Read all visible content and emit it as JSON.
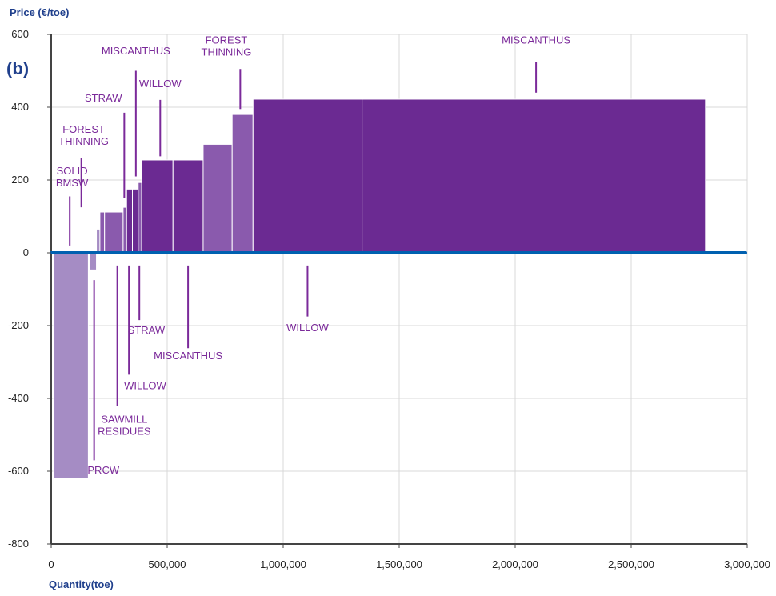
{
  "chart_data": {
    "type": "bar",
    "panel_label": "(b)",
    "ylabel": "Price (€/toe)",
    "xlabel": "Quantity(toe)",
    "xlim": [
      0,
      3000000
    ],
    "ylim": [
      -800,
      600
    ],
    "grid": true,
    "x_ticks": [
      0,
      500000,
      1000000,
      1500000,
      2000000,
      2500000,
      3000000
    ],
    "x_tick_labels": [
      "0",
      "500,000",
      "1,000,000",
      "1,500,000",
      "2,000,000",
      "2,500,000",
      "3,000,000"
    ],
    "y_ticks": [
      -800,
      -600,
      -400,
      -200,
      0,
      200,
      400,
      600
    ],
    "y_tick_labels": [
      "-800",
      "-600",
      "-400",
      "-200",
      "0",
      "200",
      "400",
      "600"
    ],
    "colors": {
      "baseline": "#0060b0",
      "light": "#a58cc4",
      "mid": "#8a5aad",
      "dark": "#6b2a92",
      "label": "#7b2a9a",
      "axis_title": "#1f3f8c"
    },
    "segments": [
      {
        "x0": 10000,
        "x1": 160000,
        "value": -620,
        "tone": "light"
      },
      {
        "x0": 165000,
        "x1": 195000,
        "value": -47,
        "tone": "light"
      },
      {
        "x0": 195000,
        "x1": 210000,
        "value": 65,
        "tone": "light"
      },
      {
        "x0": 210000,
        "x1": 230000,
        "value": 112,
        "tone": "mid"
      },
      {
        "x0": 230000,
        "x1": 310000,
        "value": 112,
        "tone": "mid"
      },
      {
        "x0": 310000,
        "x1": 325000,
        "value": 125,
        "tone": "mid"
      },
      {
        "x0": 325000,
        "x1": 350000,
        "value": 175,
        "tone": "dark"
      },
      {
        "x0": 350000,
        "x1": 375000,
        "value": 175,
        "tone": "dark"
      },
      {
        "x0": 375000,
        "x1": 390000,
        "value": 193,
        "tone": "mid"
      },
      {
        "x0": 390000,
        "x1": 525000,
        "value": 255,
        "tone": "dark"
      },
      {
        "x0": 525000,
        "x1": 655000,
        "value": 255,
        "tone": "dark"
      },
      {
        "x0": 655000,
        "x1": 780000,
        "value": 298,
        "tone": "mid"
      },
      {
        "x0": 780000,
        "x1": 870000,
        "value": 380,
        "tone": "mid"
      },
      {
        "x0": 870000,
        "x1": 1340000,
        "value": 422,
        "tone": "dark"
      },
      {
        "x0": 1340000,
        "x1": 2820000,
        "value": 422,
        "tone": "dark"
      }
    ],
    "annotations": [
      {
        "lines": [
          "MISCANTHUS"
        ],
        "anchor": "above",
        "x": 2090000,
        "text_y": 575,
        "line_y": [
          525,
          440
        ]
      },
      {
        "lines": [
          "FOREST",
          "THINNING"
        ],
        "anchor": "above",
        "x": 815000,
        "text_y": 575,
        "line_y": [
          505,
          395
        ],
        "line_x": 815000,
        "text_x": 755000
      },
      {
        "lines": [
          "MISCANTHUS"
        ],
        "anchor": "above",
        "x": 365000,
        "text_y": 545,
        "line_y": [
          500,
          210
        ]
      },
      {
        "lines": [
          "WILLOW"
        ],
        "anchor": "above",
        "x": 470000,
        "text_y": 455,
        "line_y": [
          420,
          265
        ],
        "line_x": 470000,
        "text_x": 470000
      },
      {
        "lines": [
          "STRAW"
        ],
        "anchor": "above",
        "x": 225000,
        "text_y": 415,
        "line_y": [
          385,
          150
        ],
        "line_x": 315000,
        "text_x": 225000
      },
      {
        "lines": [
          "FOREST",
          "THINNING"
        ],
        "anchor": "above",
        "x": 130000,
        "text_y": 330,
        "line_y": [
          260,
          125
        ],
        "line_x": 130000,
        "text_x": 140000
      },
      {
        "lines": [
          "SOLID",
          "BMSW"
        ],
        "anchor": "above",
        "x": 100000,
        "text_y": 215,
        "line_y": [
          155,
          20
        ],
        "line_x": 80000,
        "text_x": 90000
      },
      {
        "lines": [
          "STRAW"
        ],
        "anchor": "below",
        "x": 375000,
        "text_y": -222,
        "line_y": [
          -35,
          -185
        ],
        "line_x": 380000,
        "text_x": 410000
      },
      {
        "lines": [
          "MISCANTHUS"
        ],
        "anchor": "below",
        "x": 590000,
        "text_y": -292,
        "line_y": [
          -35,
          -262
        ],
        "line_x": 590000,
        "text_x": 590000
      },
      {
        "lines": [
          "WILLOW"
        ],
        "anchor": "below",
        "x": 1105000,
        "text_y": -215,
        "line_y": [
          -35,
          -175
        ],
        "line_x": 1105000,
        "text_x": 1105000
      },
      {
        "lines": [
          "WILLOW"
        ],
        "anchor": "below",
        "x": 340000,
        "text_y": -375,
        "line_y": [
          -35,
          -335
        ],
        "line_x": 335000,
        "text_x": 405000
      },
      {
        "lines": [
          "SAWMILL",
          "RESIDUES"
        ],
        "anchor": "below",
        "x": 290000,
        "text_y": -467,
        "line_y": [
          -35,
          -420
        ],
        "line_x": 285000,
        "text_x": 315000
      },
      {
        "lines": [
          "PRCW"
        ],
        "anchor": "below",
        "x": 185000,
        "text_y": -607,
        "line_y": [
          -75,
          -570
        ],
        "line_x": 185000,
        "text_x": 225000
      }
    ]
  }
}
